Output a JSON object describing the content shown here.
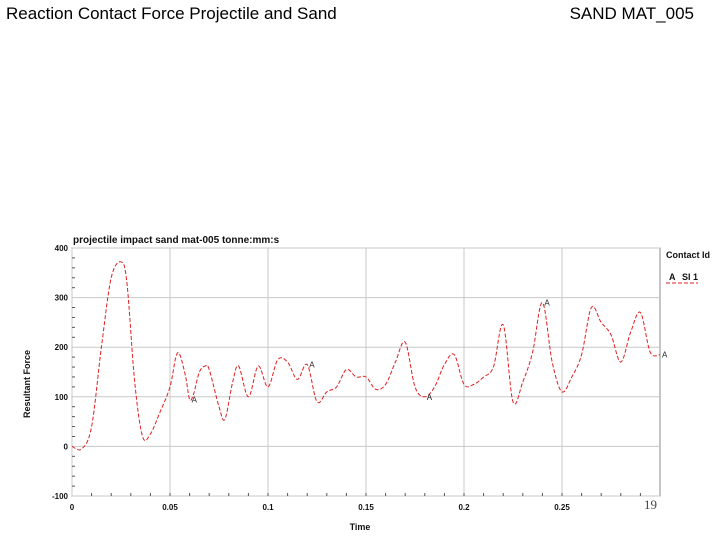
{
  "slide": {
    "title_left": "Reaction Contact Force Projectile and Sand",
    "title_right": "SAND MAT_005",
    "page_number": "19"
  },
  "chart_data": {
    "type": "line",
    "title": "projectile impact sand mat-005 tonne:mm:s",
    "xlabel": "Time",
    "ylabel": "Resultant Force",
    "xlim": [
      0,
      0.3
    ],
    "ylim": [
      -100,
      400
    ],
    "x_ticks": [
      0,
      0.05,
      0.1,
      0.15,
      0.2,
      0.25
    ],
    "x_tick_labels": [
      "0",
      "0.05",
      "0.1",
      "0.15",
      "0.2",
      "0.25"
    ],
    "y_ticks": [
      -100,
      0,
      100,
      200,
      300,
      400
    ],
    "y_tick_labels": [
      "-100",
      "0",
      "100",
      "200",
      "300",
      "400"
    ],
    "grid": true,
    "legend": {
      "title": "Contact Id",
      "placement": "right"
    },
    "series": [
      {
        "name": "SI 1",
        "marker_label": "A",
        "color": "#e02020",
        "x": [
          0,
          0.005,
          0.01,
          0.015,
          0.02,
          0.025,
          0.028,
          0.032,
          0.036,
          0.04,
          0.045,
          0.05,
          0.053,
          0.055,
          0.058,
          0.06,
          0.062,
          0.065,
          0.068,
          0.07,
          0.075,
          0.078,
          0.082,
          0.085,
          0.09,
          0.095,
          0.1,
          0.105,
          0.11,
          0.115,
          0.12,
          0.125,
          0.13,
          0.135,
          0.14,
          0.145,
          0.15,
          0.155,
          0.16,
          0.165,
          0.17,
          0.175,
          0.18,
          0.185,
          0.19,
          0.195,
          0.2,
          0.205,
          0.21,
          0.215,
          0.22,
          0.225,
          0.23,
          0.235,
          0.24,
          0.245,
          0.25,
          0.255,
          0.26,
          0.265,
          0.27,
          0.275,
          0.28,
          0.285,
          0.29,
          0.295,
          0.3
        ],
        "y": [
          0,
          -5,
          40,
          200,
          340,
          372,
          330,
          130,
          20,
          25,
          70,
          120,
          180,
          185,
          140,
          95,
          105,
          150,
          162,
          155,
          80,
          55,
          130,
          162,
          100,
          162,
          120,
          175,
          170,
          135,
          165,
          90,
          110,
          120,
          155,
          140,
          140,
          115,
          125,
          170,
          210,
          120,
          100,
          120,
          165,
          185,
          125,
          125,
          140,
          160,
          245,
          90,
          130,
          190,
          290,
          170,
          110,
          140,
          185,
          280,
          250,
          225,
          170,
          230,
          270,
          190,
          185
        ]
      }
    ],
    "annotations": [
      {
        "text": "A",
        "x": 0.06,
        "y": 95
      },
      {
        "text": "A",
        "x": 0.12,
        "y": 165
      },
      {
        "text": "A",
        "x": 0.18,
        "y": 100
      },
      {
        "text": "A",
        "x": 0.24,
        "y": 290
      },
      {
        "text": "A",
        "x": 0.3,
        "y": 185
      }
    ]
  }
}
